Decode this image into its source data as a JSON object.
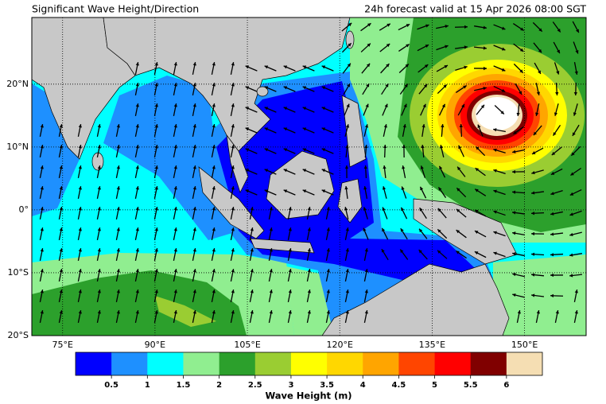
{
  "header": {
    "title": "Significant Wave Height/Direction",
    "subtitle": "24h forecast valid at 15 Apr 2026 08:00 SGT"
  },
  "map": {
    "lon_range": [
      70,
      160
    ],
    "lat_range": [
      -20,
      30.6
    ],
    "lon_ticks": [
      {
        "value": 75,
        "label": "75°E"
      },
      {
        "value": 90,
        "label": "90°E"
      },
      {
        "value": 105,
        "label": "105°E"
      },
      {
        "value": 120,
        "label": "120°E"
      },
      {
        "value": 135,
        "label": "135°E"
      },
      {
        "value": 150,
        "label": "150°E"
      }
    ],
    "lat_ticks": [
      {
        "value": 20,
        "label": "20°N"
      },
      {
        "value": 10,
        "label": "10°N"
      },
      {
        "value": 0,
        "label": "0°"
      },
      {
        "value": -10,
        "label": "10°S"
      },
      {
        "value": -20,
        "label": "20°S"
      }
    ]
  },
  "colorbar": {
    "label": "Wave Height (m)",
    "range": [
      0,
      6.5
    ],
    "ticks": [
      0.5,
      1,
      1.5,
      2,
      2.5,
      3,
      3.5,
      4,
      4.5,
      5,
      5.5,
      6
    ],
    "colors": [
      "#0000ff",
      "#1e90ff",
      "#00ffff",
      "#90ee90",
      "#2ca02c",
      "#9acd32",
      "#ffff00",
      "#ffd700",
      "#ffa500",
      "#ff4500",
      "#ff0000",
      "#800000",
      "#f5deb3"
    ]
  }
}
